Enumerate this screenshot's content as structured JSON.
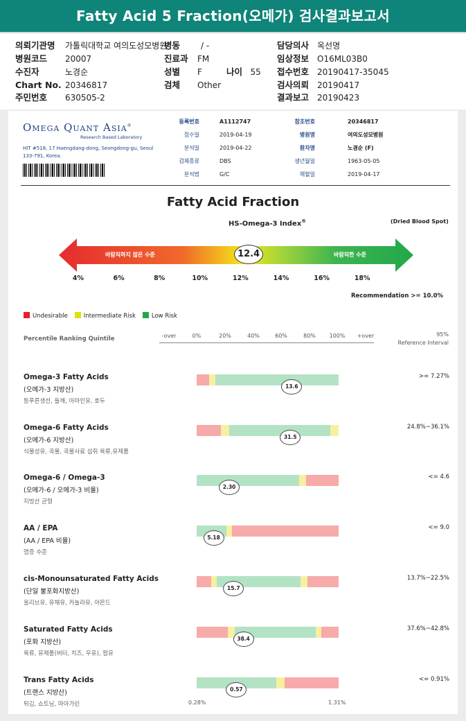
{
  "header": {
    "title": "Fatty Acid 5 Fraction(오메가) 검사결과보고서"
  },
  "info": {
    "col1": [
      {
        "label": "의뢰기관명",
        "value": "가톨릭대학교 여의도성모병원"
      },
      {
        "label": "병원코드",
        "value": "20007"
      },
      {
        "label": "수진자",
        "value": "노경순"
      },
      {
        "label": "Chart No.",
        "value": "20346817"
      },
      {
        "label": "주민번호",
        "value": "630505-2"
      }
    ],
    "col2": [
      {
        "label": "병동",
        "value": "/ -"
      },
      {
        "label": "진료과",
        "value": "FM"
      },
      {
        "label": "성별",
        "value": "F"
      },
      {
        "label": "검체",
        "value": "Other"
      }
    ],
    "age": {
      "label": "나이",
      "value": "55"
    },
    "col3": [
      {
        "label": "담당의사",
        "value": "옥선명"
      },
      {
        "label": "임상정보",
        "value": "O16ML03B0"
      },
      {
        "label": "접수번호",
        "value": "20190417-35045"
      },
      {
        "label": "검사의뢰",
        "value": "20190417"
      },
      {
        "label": "결과보고",
        "value": "20190423"
      }
    ]
  },
  "lab": {
    "name_big": "Omega Quant Asia",
    "registered": "®",
    "tagline": "Research Based Laboratory",
    "address": "HIT #518, 17 Haengdang-dong, Seongdong-gu, Seoul 133-791, Korea."
  },
  "meta": {
    "left": [
      {
        "label": "등록번호",
        "value": "A1112747"
      },
      {
        "label": "접수일",
        "value": "2019-04-19"
      },
      {
        "label": "분석일",
        "value": "2019-04-22"
      },
      {
        "label": "검체종류",
        "value": "DBS"
      },
      {
        "label": "분석법",
        "value": "G/C"
      }
    ],
    "right": [
      {
        "label": "참조번호",
        "value": "20346817"
      },
      {
        "label": "병원명",
        "value": "여의도성모병원"
      },
      {
        "label": "환자명",
        "value": "노경순 (F)"
      },
      {
        "label": "생년월일",
        "value": "1963-05-05"
      },
      {
        "label": "채혈일",
        "value": "2019-04-17"
      }
    ]
  },
  "index": {
    "title": "Fatty Acid Fraction",
    "subtitle": "HS-Omega-3 Index",
    "subtitle_sup": "®",
    "sample": "(Dried Blood Spot)",
    "left_text": "바람직하지 않은 수준",
    "right_text": "바람직한 수준",
    "value": "12.4",
    "value_num": 12.4,
    "ticks": [
      "4%",
      "6%",
      "8%",
      "10%",
      "12%",
      "14%",
      "16%",
      "18%"
    ],
    "recommendation": "Recommendation  >= 10.0%"
  },
  "legend": {
    "items": [
      {
        "label": "Undesirable",
        "color": "#e8202a"
      },
      {
        "label": "Intermediate Risk",
        "color": "#e0e010"
      },
      {
        "label": "Low Risk",
        "color": "#22a84a"
      }
    ]
  },
  "percentile": {
    "title": "Percentile Ranking Quintile",
    "headers": [
      "-over",
      "0%",
      "20%",
      "40%",
      "60%",
      "80%",
      "100%",
      "+over"
    ],
    "ref_title_1": "95%",
    "ref_title_2": "Reference Interval"
  },
  "colors": {
    "red": "#f7aaaa",
    "yellow": "#f7f0a0",
    "green": "#b3e3c4"
  },
  "rows": [
    {
      "name": "Omega-3 Fatty Acids",
      "sub": "(오메가-3 지방산)",
      "src": "등푸른생선, 들깨, 아마인유, 호두",
      "ref": ">= 7.27%",
      "value": "13.6",
      "pos": 0.67,
      "segs": [
        [
          "red",
          0,
          0.09
        ],
        [
          "yellow",
          0.09,
          0.13
        ],
        [
          "green",
          0.13,
          1.0
        ]
      ]
    },
    {
      "name": "Omega-6 Fatty Acids",
      "sub": "(오메가-6 지방산)",
      "src": "식물성유, 곡물, 곡물사료 섭취 육류,유제품",
      "ref": "24.8%~36.1%",
      "value": "31.5",
      "pos": 0.66,
      "segs": [
        [
          "red",
          0,
          0.17
        ],
        [
          "yellow",
          0.17,
          0.23
        ],
        [
          "green",
          0.23,
          0.94
        ],
        [
          "yellow",
          0.94,
          1.0
        ]
      ]
    },
    {
      "name": "Omega-6 / Omega-3",
      "sub": "(오메가-6 / 오메가-3 비율)",
      "src": "지방산 균형",
      "ref": "<= 4.6",
      "value": "2.30",
      "pos": 0.23,
      "segs": [
        [
          "green",
          0,
          0.72
        ],
        [
          "yellow",
          0.72,
          0.77
        ],
        [
          "red",
          0.77,
          1.0
        ]
      ]
    },
    {
      "name": "AA / EPA",
      "sub": "(AA / EPA 비율)",
      "src": "염증 수준",
      "ref": "<= 9.0",
      "value": "5.18",
      "pos": 0.12,
      "segs": [
        [
          "green",
          0,
          0.21
        ],
        [
          "yellow",
          0.21,
          0.25
        ],
        [
          "red",
          0.25,
          1.0
        ]
      ]
    },
    {
      "name": "cis-Monounsaturated Fatty Acids",
      "sub": "(단일 불포화지방산)",
      "src": "올리브유, 유채유, 카놀라유, 아몬드",
      "ref": "13.7%~22.5%",
      "value": "15.7",
      "pos": 0.26,
      "segs": [
        [
          "red",
          0,
          0.1
        ],
        [
          "yellow",
          0.1,
          0.14
        ],
        [
          "green",
          0.14,
          0.73
        ],
        [
          "yellow",
          0.73,
          0.78
        ],
        [
          "red",
          0.78,
          1.0
        ]
      ]
    },
    {
      "name": "Saturated Fatty Acids",
      "sub": "(포화 지방산)",
      "src": "육류, 유제품(버터, 치즈, 우유), 팜유",
      "ref": "37.6%~42.8%",
      "value": "38.4",
      "pos": 0.33,
      "segs": [
        [
          "red",
          0,
          0.22
        ],
        [
          "yellow",
          0.22,
          0.27
        ],
        [
          "green",
          0.27,
          0.84
        ],
        [
          "yellow",
          0.84,
          0.88
        ],
        [
          "red",
          0.88,
          1.0
        ]
      ]
    },
    {
      "name": "Trans Fatty Acids",
      "sub": "(트랜스 지방산)",
      "src": "튀김, 쇼트닝, 마아가린",
      "ref": "<= 0.91%",
      "value": "0.57",
      "pos": 0.28,
      "segs": [
        [
          "green",
          0,
          0.56
        ],
        [
          "yellow",
          0.56,
          0.62
        ],
        [
          "red",
          0.62,
          1.0
        ]
      ]
    }
  ],
  "footer": {
    "min": "0.28%",
    "max": "1.31%"
  }
}
